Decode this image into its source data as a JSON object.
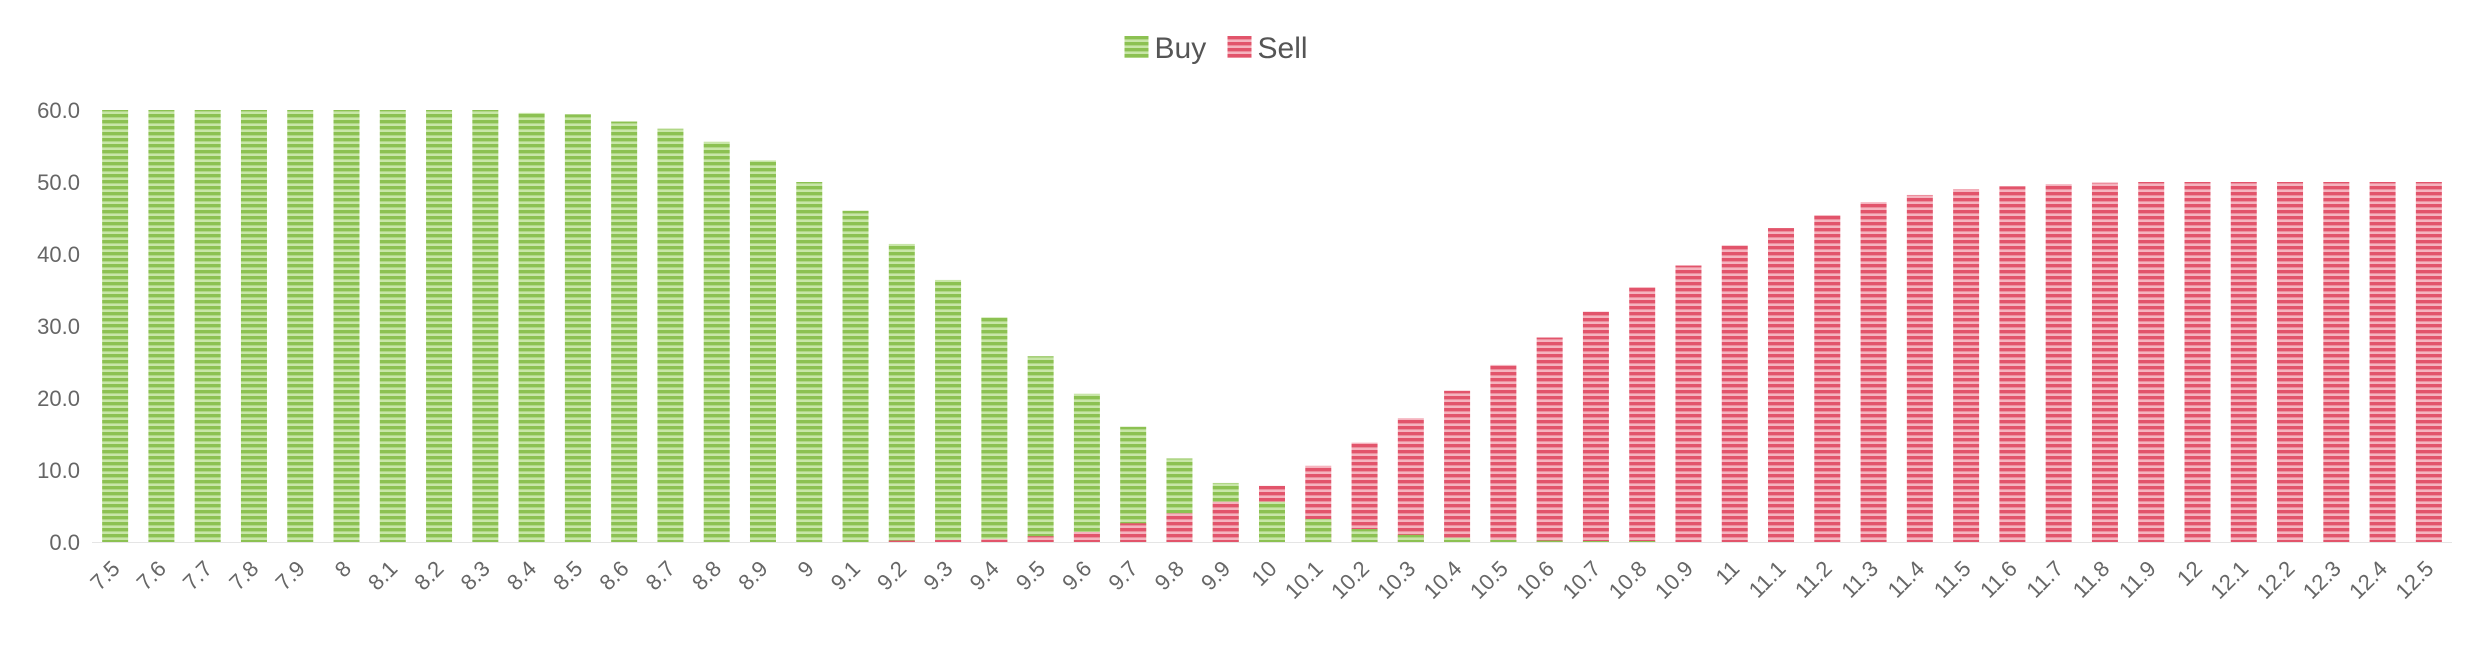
{
  "chart_data": {
    "type": "bar",
    "stacked": false,
    "grid": false,
    "legend_position": "top-center",
    "ylim": [
      0,
      60
    ],
    "yticks": [
      "0.0",
      "10.0",
      "20.0",
      "30.0",
      "40.0",
      "50.0",
      "60.0"
    ],
    "categories": [
      "7.5",
      "7.6",
      "7.7",
      "7.8",
      "7.9",
      "8",
      "8.1",
      "8.2",
      "8.3",
      "8.4",
      "8.5",
      "8.6",
      "8.7",
      "8.8",
      "8.9",
      "9",
      "9.1",
      "9.2",
      "9.3",
      "9.4",
      "9.5",
      "9.6",
      "9.7",
      "9.8",
      "9.9",
      "10",
      "10.1",
      "10.2",
      "10.3",
      "10.4",
      "10.5",
      "10.6",
      "10.7",
      "10.8",
      "10.9",
      "11",
      "11.1",
      "11.2",
      "11.3",
      "11.4",
      "11.5",
      "11.6",
      "11.7",
      "11.8",
      "11.9",
      "12",
      "12.1",
      "12.2",
      "12.3",
      "12.4",
      "12.5"
    ],
    "series": [
      {
        "name": "Buy",
        "color": "#8cc152",
        "stripe_color": "#c8e6a8",
        "values": [
          60,
          60,
          60,
          60,
          60,
          60,
          60,
          60,
          60,
          59.6,
          59.4,
          58.4,
          57.4,
          55.6,
          53,
          50,
          46,
          41.4,
          36.4,
          31.2,
          25.8,
          20.6,
          16,
          11.6,
          8.2,
          5.6,
          3.2,
          1.8,
          1,
          0.6,
          0.3,
          0.2,
          0.1,
          0.1,
          0,
          0,
          0,
          0,
          0,
          0,
          0,
          0,
          0,
          0,
          0,
          0,
          0,
          0,
          0,
          0,
          0
        ]
      },
      {
        "name": "Sell",
        "color": "#e2546b",
        "stripe_color": "#f5b4bf",
        "values": [
          0,
          0,
          0,
          0,
          0,
          0,
          0,
          0,
          0,
          0,
          0,
          0,
          0,
          0,
          0,
          0,
          0,
          0.2,
          0.3,
          0.4,
          0.8,
          1.4,
          2.6,
          4,
          5.6,
          7.8,
          10.6,
          13.8,
          17.2,
          21,
          24.6,
          28.4,
          32,
          35.4,
          38.4,
          41.2,
          43.6,
          45.4,
          47.2,
          48.2,
          49,
          49.4,
          49.7,
          49.9,
          50,
          50,
          50,
          50,
          50,
          50,
          50
        ]
      }
    ]
  }
}
